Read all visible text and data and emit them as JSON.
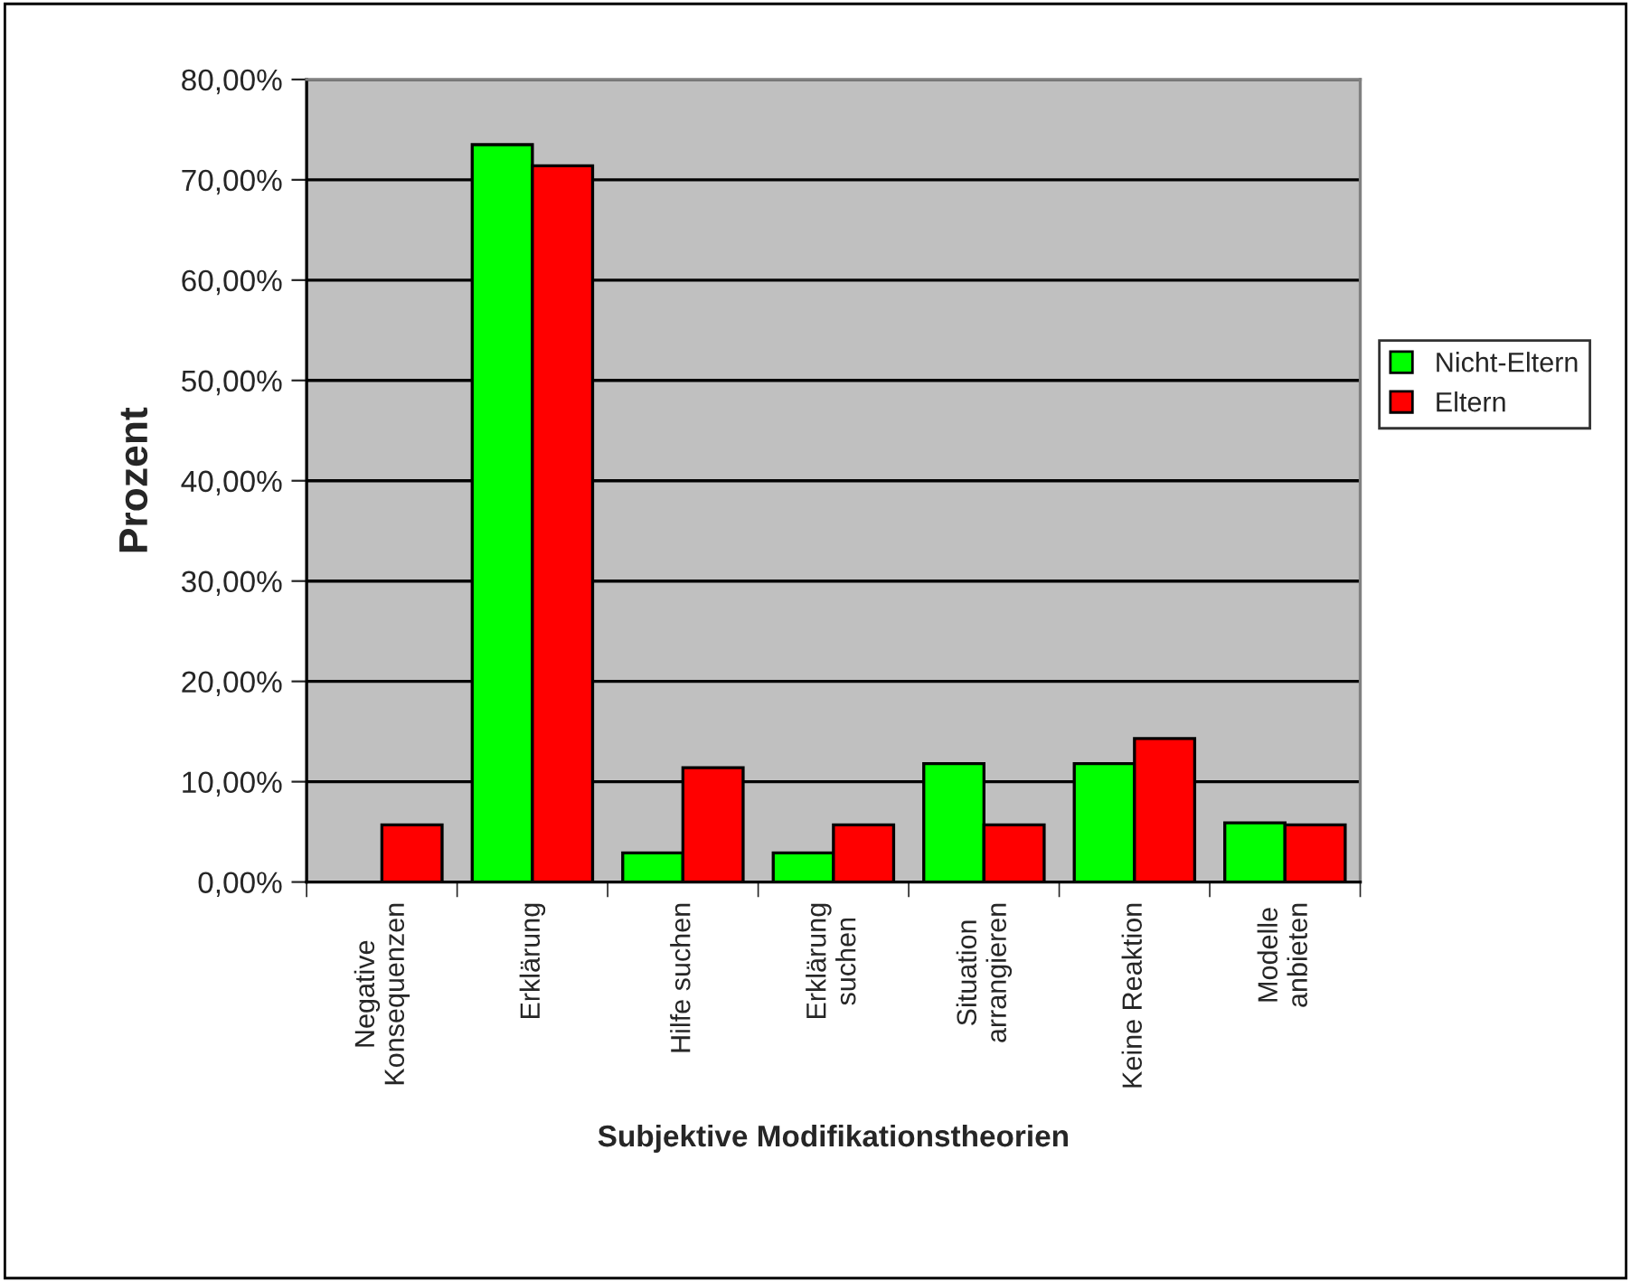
{
  "chart_data": {
    "type": "bar",
    "xlabel": "Subjektive Modifikationstheorien",
    "ylabel": "Prozent",
    "categories": [
      "Negative\nKonsequenzen",
      "Erklärung",
      "Hilfe suchen",
      "Erklärung\nsuchen",
      "Situation\narrangieren",
      "Keine Reaktion",
      "Modelle\nanbieten"
    ],
    "series": [
      {
        "name": "Nicht-Eltern",
        "color": "#00ff00",
        "values": [
          null,
          73.5,
          2.9,
          2.9,
          11.8,
          11.8,
          5.9
        ]
      },
      {
        "name": "Eltern",
        "color": "#ff0000",
        "values": [
          5.7,
          71.4,
          11.4,
          5.7,
          5.7,
          14.3,
          5.7
        ]
      }
    ],
    "ylim": [
      0,
      80
    ],
    "yticks": [
      {
        "value": 0,
        "label": "0,00%"
      },
      {
        "value": 10,
        "label": "10,00%"
      },
      {
        "value": 20,
        "label": "20,00%"
      },
      {
        "value": 30,
        "label": "30,00%"
      },
      {
        "value": 40,
        "label": "40,00%"
      },
      {
        "value": 50,
        "label": "50,00%"
      },
      {
        "value": 60,
        "label": "60,00%"
      },
      {
        "value": 70,
        "label": "70,00%"
      },
      {
        "value": 80,
        "label": "80,00%"
      }
    ],
    "grid": "y",
    "legend": "right"
  }
}
